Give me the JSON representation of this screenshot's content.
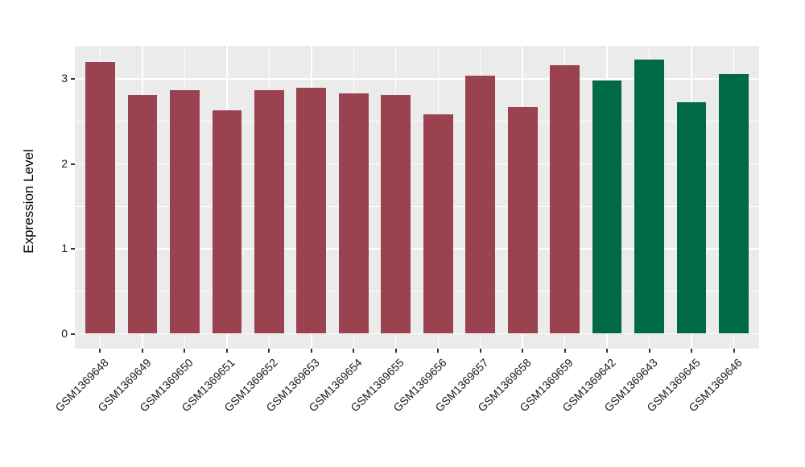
{
  "chart_data": {
    "type": "bar",
    "title": "",
    "xlabel": "",
    "ylabel": "Expression Level",
    "categories": [
      "GSM1369648",
      "GSM1369649",
      "GSM1369650",
      "GSM1369651",
      "GSM1369652",
      "GSM1369653",
      "GSM1369654",
      "GSM1369655",
      "GSM1369656",
      "GSM1369657",
      "GSM1369658",
      "GSM1369659",
      "GSM1369642",
      "GSM1369643",
      "GSM1369645",
      "GSM1369646"
    ],
    "values": [
      3.19,
      2.8,
      2.86,
      2.62,
      2.86,
      2.89,
      2.82,
      2.8,
      2.58,
      3.03,
      2.66,
      3.15,
      2.97,
      3.22,
      2.72,
      3.05
    ],
    "bar_colors": [
      "#9A4250",
      "#9A4250",
      "#9A4250",
      "#9A4250",
      "#9A4250",
      "#9A4250",
      "#9A4250",
      "#9A4250",
      "#9A4250",
      "#9A4250",
      "#9A4250",
      "#9A4250",
      "#006947",
      "#006947",
      "#006947",
      "#006947"
    ],
    "color_groups": {
      "maroon": "#9A4250",
      "green": "#006947",
      "maroon_count": 12,
      "green_count": 4
    },
    "yticks": [
      0,
      1,
      2,
      3
    ],
    "ytick_labels": [
      "0",
      "1",
      "2",
      "3"
    ],
    "yminor": [
      0.5,
      1.5,
      2.5
    ],
    "ylim": [
      -0.18,
      3.39
    ],
    "grid": true,
    "legend_position": "none",
    "x_label_angle_deg": 45,
    "panel_bg": "#EBEBEB",
    "grid_color": "#FFFFFF"
  }
}
